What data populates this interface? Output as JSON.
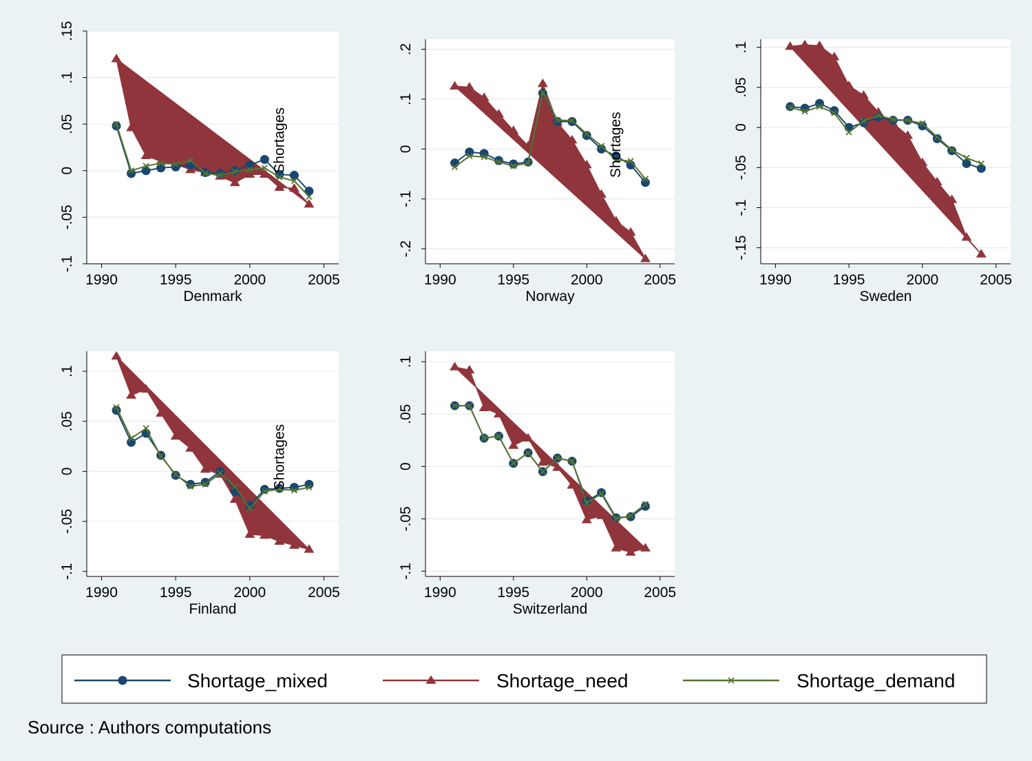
{
  "colors": {
    "background": "#eaf2f3",
    "plot_bg": "#ffffff",
    "grid": "#e3ecee",
    "mixed": "#1a476f",
    "need": "#90353b",
    "demand": "#55752f"
  },
  "source_note": "Source : Authors computations",
  "legend": {
    "placement": "bottom",
    "items": [
      {
        "series": "mixed",
        "label": "Shortage_mixed",
        "marker": "circle"
      },
      {
        "series": "need",
        "label": "Shortage_need",
        "marker": "triangle"
      },
      {
        "series": "demand",
        "label": "Shortage_demand",
        "marker": "x"
      }
    ]
  },
  "chart_data": [
    {
      "type": "line",
      "title": "Denmark",
      "annotation": "Shortages",
      "x": [
        1991,
        1992,
        1993,
        1994,
        1995,
        1996,
        1997,
        1998,
        1999,
        2000,
        2001,
        2002,
        2003,
        2004
      ],
      "xlim": [
        1989,
        2006
      ],
      "ylim": [
        -0.1,
        0.15
      ],
      "yticks": [
        -0.1,
        -0.05,
        0,
        0.05,
        0.1,
        0.15
      ],
      "ytick_labels": [
        "-.1",
        "-.05",
        "0",
        ".05",
        ".1",
        ".15"
      ],
      "xticks": [
        1990,
        1995,
        2000,
        2005
      ],
      "series": [
        {
          "key": "mixed",
          "values": [
            0.048,
            -0.003,
            0.0,
            0.003,
            0.004,
            0.006,
            -0.002,
            -0.003,
            0.0,
            0.006,
            0.012,
            -0.004,
            -0.005,
            -0.022
          ]
        },
        {
          "key": "need",
          "values": [
            0.12,
            0.046,
            0.016,
            0.01,
            0.007,
            0.001,
            -0.002,
            -0.006,
            -0.013,
            -0.004,
            -0.004,
            -0.018,
            -0.019,
            -0.036
          ]
        },
        {
          "key": "demand",
          "values": [
            0.05,
            0.0,
            0.005,
            0.008,
            0.007,
            0.011,
            -0.003,
            -0.005,
            -0.001,
            0.001,
            0.003,
            -0.007,
            -0.011,
            -0.028
          ]
        }
      ]
    },
    {
      "type": "line",
      "title": "Norway",
      "annotation": "Shortages",
      "x": [
        1991,
        1992,
        1993,
        1994,
        1995,
        1996,
        1997,
        1998,
        1999,
        2000,
        2001,
        2002,
        2003,
        2004
      ],
      "xlim": [
        1989,
        2006
      ],
      "ylim": [
        -0.23,
        0.22
      ],
      "yticks": [
        -0.2,
        -0.1,
        0,
        0.1,
        0.2
      ],
      "ytick_labels": [
        "-.2",
        "-.1",
        "0",
        ".1",
        ".2"
      ],
      "xticks": [
        1990,
        1995,
        2000,
        2005
      ],
      "series": [
        {
          "key": "mixed",
          "values": [
            -0.028,
            -0.006,
            -0.009,
            -0.023,
            -0.03,
            -0.026,
            0.112,
            0.055,
            0.055,
            0.027,
            0.0,
            -0.014,
            -0.032,
            -0.067
          ]
        },
        {
          "key": "need",
          "values": [
            0.126,
            0.124,
            0.103,
            0.07,
            0.037,
            0.006,
            0.131,
            0.053,
            0.018,
            -0.032,
            -0.091,
            -0.144,
            -0.167,
            -0.22
          ]
        },
        {
          "key": "demand",
          "values": [
            -0.036,
            -0.014,
            -0.016,
            -0.026,
            -0.034,
            -0.028,
            0.113,
            0.058,
            0.057,
            0.03,
            0.006,
            -0.022,
            -0.024,
            -0.06
          ]
        }
      ]
    },
    {
      "type": "line",
      "title": "Sweden",
      "annotation": "",
      "x": [
        1991,
        1992,
        1993,
        1994,
        1995,
        1996,
        1997,
        1998,
        1999,
        2000,
        2001,
        2002,
        2003,
        2004
      ],
      "xlim": [
        1989,
        2006
      ],
      "ylim": [
        -0.17,
        0.11
      ],
      "yticks": [
        -0.15,
        -0.1,
        -0.05,
        0,
        0.05,
        0.1
      ],
      "ytick_labels": [
        "-.15",
        "-.1",
        "-.05",
        "0",
        ".05",
        ".1"
      ],
      "xticks": [
        1990,
        1995,
        2000,
        2005
      ],
      "series": [
        {
          "key": "mixed",
          "values": [
            0.026,
            0.024,
            0.03,
            0.021,
            0.0,
            0.006,
            0.013,
            0.009,
            0.009,
            0.002,
            -0.014,
            -0.029,
            -0.045,
            -0.051
          ]
        },
        {
          "key": "need",
          "values": [
            0.101,
            0.103,
            0.102,
            0.088,
            0.052,
            0.04,
            0.019,
            0.005,
            -0.01,
            -0.044,
            -0.068,
            -0.09,
            -0.137,
            -0.158
          ]
        },
        {
          "key": "demand",
          "values": [
            0.025,
            0.02,
            0.026,
            0.018,
            -0.006,
            0.008,
            0.015,
            0.01,
            0.009,
            0.005,
            -0.012,
            -0.028,
            -0.038,
            -0.045
          ]
        }
      ]
    },
    {
      "type": "line",
      "title": "Finland",
      "annotation": "Shortages",
      "x": [
        1991,
        1992,
        1993,
        1994,
        1995,
        1996,
        1997,
        1998,
        1999,
        2000,
        2001,
        2002,
        2003,
        2004
      ],
      "xlim": [
        1989,
        2006
      ],
      "ylim": [
        -0.105,
        0.12
      ],
      "yticks": [
        -0.1,
        -0.05,
        0,
        0.05,
        0.1
      ],
      "ytick_labels": [
        "-.1",
        "-.05",
        "0",
        ".05",
        ".1"
      ],
      "xticks": [
        1990,
        1995,
        2000,
        2005
      ],
      "series": [
        {
          "key": "mixed",
          "values": [
            0.061,
            0.029,
            0.038,
            0.016,
            -0.004,
            -0.013,
            -0.011,
            0.0,
            -0.02,
            -0.034,
            -0.018,
            -0.017,
            -0.016,
            -0.013
          ]
        },
        {
          "key": "need",
          "values": [
            0.115,
            0.076,
            0.082,
            0.058,
            0.035,
            0.023,
            0.002,
            -0.003,
            -0.028,
            -0.063,
            -0.064,
            -0.07,
            -0.074,
            -0.078
          ]
        },
        {
          "key": "demand",
          "values": [
            0.064,
            0.033,
            0.043,
            0.015,
            -0.003,
            -0.015,
            -0.013,
            -0.002,
            -0.015,
            -0.037,
            -0.02,
            -0.018,
            -0.019,
            -0.016
          ]
        }
      ]
    },
    {
      "type": "line",
      "title": "Switzerland",
      "annotation": "",
      "x": [
        1991,
        1992,
        1993,
        1994,
        1995,
        1996,
        1997,
        1998,
        1999,
        2000,
        2001,
        2002,
        2003,
        2004
      ],
      "xlim": [
        1989,
        2006
      ],
      "ylim": [
        -0.105,
        0.11
      ],
      "yticks": [
        -0.1,
        -0.05,
        0,
        0.05,
        0.1
      ],
      "ytick_labels": [
        "-.1",
        "-.05",
        "0",
        ".05",
        ".1"
      ],
      "xticks": [
        1990,
        1995,
        2000,
        2005
      ],
      "series": [
        {
          "key": "mixed",
          "values": [
            0.058,
            0.058,
            0.027,
            0.029,
            0.003,
            0.013,
            -0.005,
            0.008,
            0.005,
            -0.033,
            -0.025,
            -0.049,
            -0.048,
            -0.038
          ]
        },
        {
          "key": "need",
          "values": [
            0.095,
            0.092,
            0.056,
            0.05,
            0.02,
            0.027,
            0.004,
            -0.001,
            -0.018,
            -0.051,
            -0.047,
            -0.078,
            -0.082,
            -0.078
          ]
        },
        {
          "key": "demand",
          "values": [
            0.058,
            0.058,
            0.027,
            0.029,
            0.003,
            0.013,
            -0.005,
            0.008,
            0.005,
            -0.035,
            -0.026,
            -0.05,
            -0.047,
            -0.036
          ]
        }
      ]
    }
  ]
}
